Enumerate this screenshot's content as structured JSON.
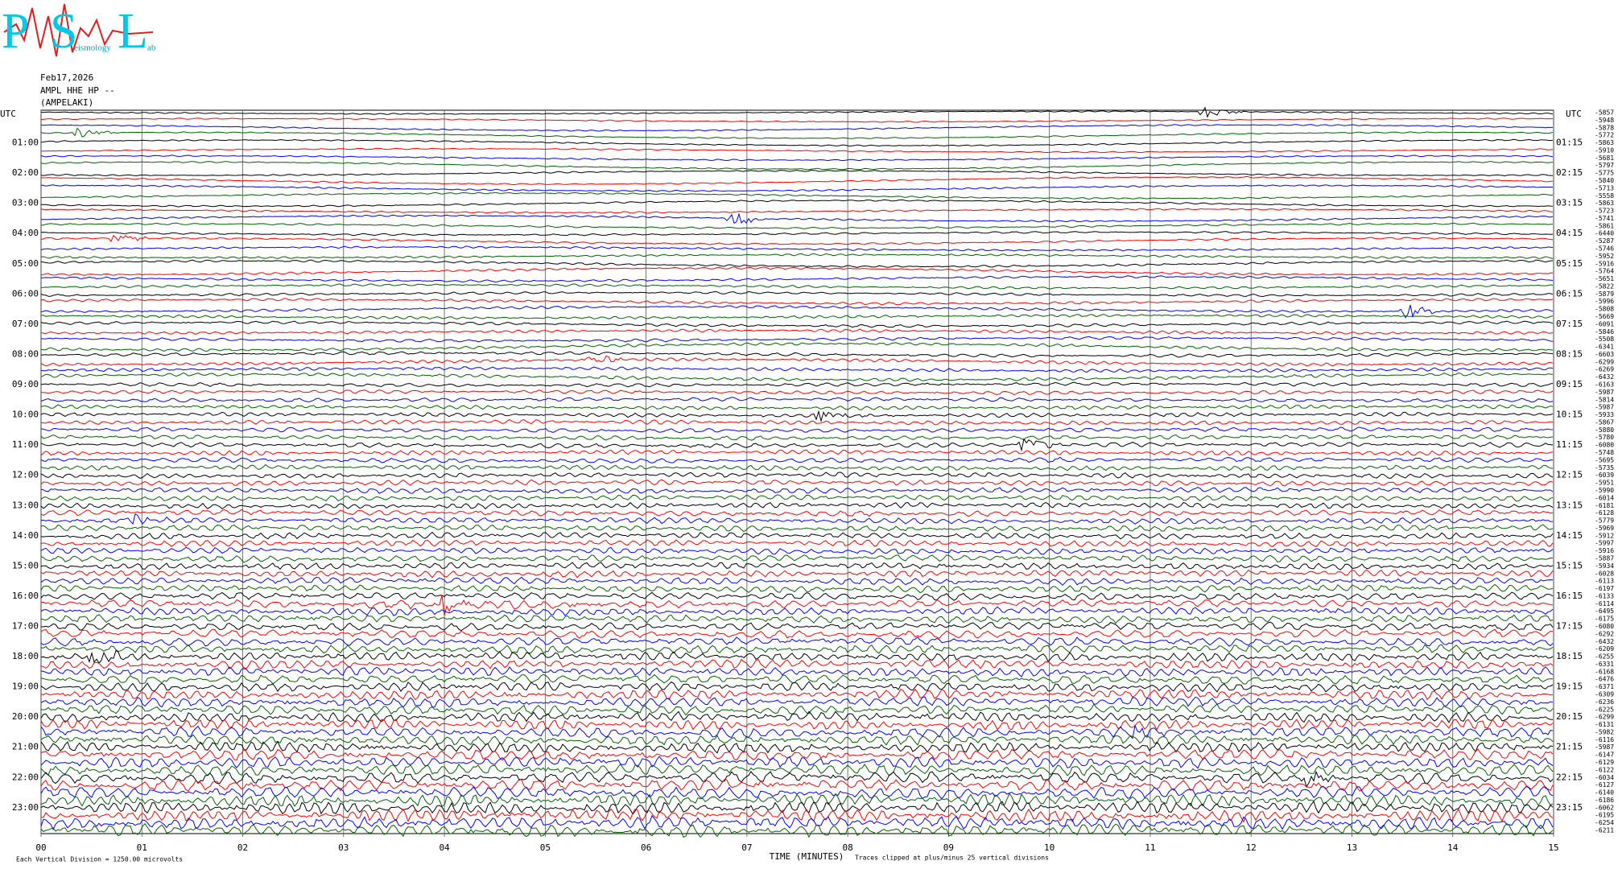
{
  "logo": {
    "letters": [
      "P",
      "S",
      "L"
    ],
    "words": [
      "eismology",
      "ab"
    ]
  },
  "header": {
    "date": "Feb17,2026",
    "station": "AMPL HHE HP --",
    "location": "(AMPELAKI)"
  },
  "axes": {
    "left_title": "UTC",
    "right_title": "UTC",
    "left_hours": [
      "01:00",
      "02:00",
      "03:00",
      "04:00",
      "05:00",
      "06:00",
      "07:00",
      "08:00",
      "09:00",
      "10:00",
      "11:00",
      "12:00",
      "13:00",
      "14:00",
      "15:00",
      "16:00",
      "17:00",
      "18:00",
      "19:00",
      "20:00",
      "21:00",
      "22:00",
      "23:00"
    ],
    "right_hours": [
      "01:15",
      "02:15",
      "03:15",
      "04:15",
      "05:15",
      "06:15",
      "07:15",
      "08:15",
      "09:15",
      "10:15",
      "11:15",
      "12:15",
      "13:15",
      "14:15",
      "15:15",
      "16:15",
      "17:15",
      "18:15",
      "19:15",
      "20:15",
      "21:15",
      "22:15",
      "23:15"
    ],
    "x_ticks": [
      "00",
      "01",
      "02",
      "03",
      "04",
      "05",
      "06",
      "07",
      "08",
      "09",
      "10",
      "11",
      "12",
      "13",
      "14",
      "15"
    ],
    "x_title": "TIME (MINUTES)",
    "clip_note": "Traces clipped at plus/minus 25 vertical divisions",
    "scale_note": "Each Vertical Division = 1250.00 microvolts"
  },
  "trace_colors": [
    "#000000",
    "#ff0000",
    "#0000ff",
    "#006400"
  ],
  "trace_offsets": [
    -5857,
    -5948,
    -5878,
    -5772,
    -5863,
    -5910,
    -5681,
    -5797,
    -5775,
    -5840,
    -5713,
    -5558,
    -5863,
    -5723,
    -5741,
    -5861,
    -6440,
    -5287,
    -5746,
    -5952,
    -5916,
    -5764,
    -5651,
    -5822,
    -5879,
    -5996,
    -5808,
    -5669,
    -6091,
    -5846,
    -5508,
    -6341,
    -6603,
    -6299,
    -6269,
    -6432,
    -6163,
    -5987,
    -5814,
    -5987,
    -5933,
    -5867,
    -5880,
    -5780,
    -6080,
    -5748,
    -5695,
    -5735,
    -6039,
    -5951,
    -5990,
    -6014,
    -6181,
    -6128,
    -5779,
    -5969,
    -5912,
    -5997,
    -5916,
    -5887,
    -5934,
    -6028,
    -6113,
    -6197,
    -6133,
    -6114,
    -6495,
    -6175,
    -6080,
    -6292,
    -6432,
    -6209,
    -6255,
    -6331,
    -6168,
    -6476,
    -6371,
    -6309,
    -6236,
    -6225,
    -6299,
    -6131,
    -5982,
    -6116,
    -5987,
    -6147,
    -6129,
    -6122,
    -6034,
    -6127,
    -6140,
    -6186,
    -6062,
    -6195,
    -6254,
    -6211
  ]
}
